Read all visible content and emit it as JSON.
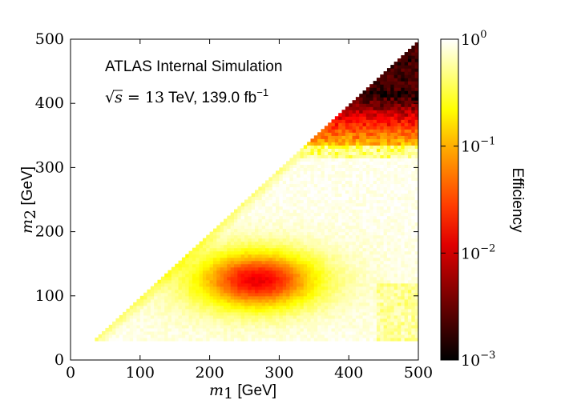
{
  "chart_data": {
    "type": "heatmap",
    "annotation": {
      "line1": "ATLAS Internal Simulation",
      "sqrt_symbol": "√",
      "sqrt_var": "s",
      "energy_value": " = 13",
      "energy_unit": " TeV, 139.0 fb",
      "lumi_exponent": "−1"
    },
    "xlabel": {
      "var": "m",
      "sub": "1",
      "unit": " [GeV]"
    },
    "ylabel": {
      "var": "m",
      "sub": "2",
      "unit": " [GeV]"
    },
    "xlim": [
      0,
      500
    ],
    "ylim": [
      0,
      500
    ],
    "xticks": [
      0,
      100,
      200,
      300,
      400,
      500
    ],
    "yticks": [
      0,
      100,
      200,
      300,
      400,
      500
    ],
    "grid": false,
    "mass_region": {
      "min_mass": 30,
      "max_mass": 500,
      "constraint": "m2 <= m1"
    },
    "efficiency_regions": [
      {
        "description": "bulk",
        "efficiency": 0.9
      },
      {
        "description": "hot spot near m1=270, m2=125",
        "efficiency": 0.02
      },
      {
        "description": "yellow band near m1=250, m2=125",
        "efficiency": 0.3
      },
      {
        "description": "diagonal edge band",
        "efficiency": 0.4
      },
      {
        "description": "upper band m2 330-380",
        "efficiency": 0.01
      },
      {
        "description": "top corner m2 > 400",
        "efficiency": 0.002
      }
    ],
    "colorbar": {
      "label": "Efficiency",
      "scale": "log",
      "range": [
        0.001,
        1
      ],
      "ticks": [
        {
          "base": "10",
          "exp": "0",
          "value": 1
        },
        {
          "base": "10",
          "exp": "−1",
          "value": 0.1
        },
        {
          "base": "10",
          "exp": "−2",
          "value": 0.01
        },
        {
          "base": "10",
          "exp": "−3",
          "value": 0.001
        }
      ],
      "colormap": "hot",
      "colormap_stops": [
        "#000000",
        "#ff0000",
        "#ffff00",
        "#ffffff"
      ]
    }
  }
}
